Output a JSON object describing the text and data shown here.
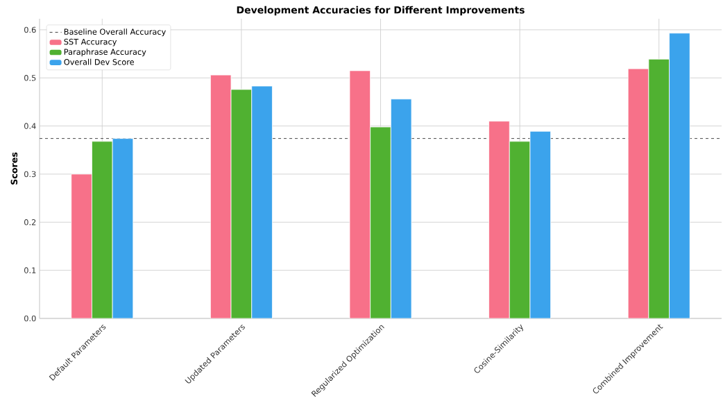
{
  "chart_data": {
    "type": "bar",
    "title": "Development Accuracies for Different Improvements",
    "ylabel": "Scores",
    "categories": [
      "Default Parameters",
      "Updated Parameters",
      "Regularized Optimization",
      "Cosine-Similarity",
      "Combined Improvement"
    ],
    "series": [
      {
        "name": "SST Accuracy",
        "color": "#f77189",
        "values": [
          0.3,
          0.506,
          0.515,
          0.41,
          0.519
        ]
      },
      {
        "name": "Paraphrase Accuracy",
        "color": "#50b131",
        "values": [
          0.368,
          0.476,
          0.398,
          0.368,
          0.539
        ]
      },
      {
        "name": "Overall Dev Score",
        "color": "#3ba3ec",
        "values": [
          0.374,
          0.483,
          0.456,
          0.389,
          0.593
        ]
      }
    ],
    "ylim": [
      0,
      0.623
    ],
    "yticks": [
      {
        "value": 0,
        "label": "0.0"
      },
      0.1,
      0.2,
      0.3,
      0.4,
      0.5,
      0.6
    ],
    "ref_lines": [
      {
        "axis": "y",
        "value": 0.374,
        "label": "Baseline Overall Accuracy",
        "color": "#333333",
        "line_style": "dashed"
      }
    ],
    "grid": true,
    "legend": "top left"
  }
}
